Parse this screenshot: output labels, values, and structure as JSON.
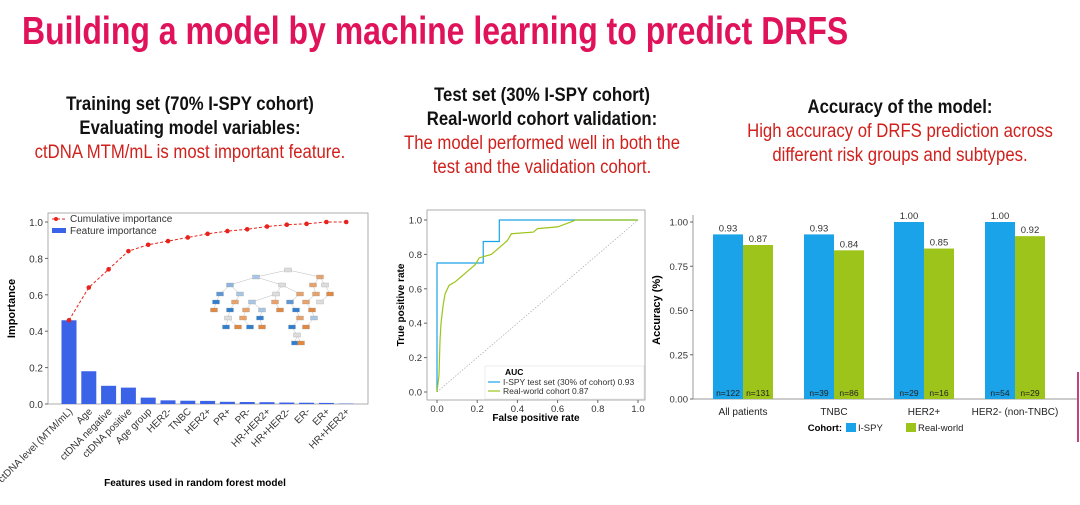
{
  "title": "Building a model by machine learning to predict DRFS",
  "columns": [
    {
      "heading_lines": [
        "Training set (70% I-SPY cohort)",
        "Evaluating model variables:"
      ],
      "highlight_lines": [
        "ctDNA MTM/mL is most important feature."
      ]
    },
    {
      "heading_lines": [
        "Test set (30% I-SPY cohort)",
        "Real-world cohort validation:"
      ],
      "highlight_lines": [
        "The model performed well in both the",
        "test and the validation cohort."
      ]
    },
    {
      "heading_lines": [
        "Accuracy of the model:"
      ],
      "highlight_lines": [
        "High accuracy of DRFS prediction across",
        "different risk groups and subtypes."
      ]
    }
  ],
  "colors": {
    "title": "#e0135a",
    "highlight": "#d0201c",
    "feature_bar": "#3a63e8",
    "cumulative": "#e8221c",
    "ispy": "#1aa3e8",
    "realworld": "#9dc41a"
  },
  "chart_data": [
    {
      "type": "bar",
      "xlabel": "Features used in random forest model",
      "ylabel": "Importance",
      "ylim": [
        0,
        1.0
      ],
      "yticks": [
        "0.0",
        "0.2",
        "0.4",
        "0.6",
        "0.8",
        "1.0"
      ],
      "categories": [
        "ctDNA level (MTM/mL)",
        "Age",
        "ctDNA negative",
        "ctDNA positive",
        "Age group",
        "HER2-",
        "TNBC",
        "HER2+",
        "PR+",
        "PR-",
        "HR-HER2+",
        "HR+HER2-",
        "ER-",
        "ER+",
        "HR+HER2+"
      ],
      "series": [
        {
          "name": "Feature importance",
          "type": "bar",
          "values": [
            0.46,
            0.18,
            0.1,
            0.09,
            0.035,
            0.02,
            0.018,
            0.017,
            0.012,
            0.011,
            0.01,
            0.008,
            0.007,
            0.006,
            0.002
          ]
        },
        {
          "name": "Cumulative importance",
          "type": "line",
          "values": [
            0.46,
            0.64,
            0.74,
            0.84,
            0.875,
            0.895,
            0.915,
            0.935,
            0.95,
            0.96,
            0.975,
            0.985,
            0.99,
            1.0,
            1.0
          ]
        }
      ],
      "legend": "top-left",
      "inset": "decision tree diagram"
    },
    {
      "type": "line",
      "xlabel": "False positive rate",
      "ylabel": "True positive rate",
      "xlim": [
        0,
        1
      ],
      "ylim": [
        0,
        1
      ],
      "xticks": [
        "0.0",
        "0.2",
        "0.4",
        "0.6",
        "0.8",
        "1.0"
      ],
      "yticks": [
        "0.0",
        "0.2",
        "0.4",
        "0.6",
        "0.8",
        "1.0"
      ],
      "legend_title": "AUC",
      "legend": "bottom-right",
      "series": [
        {
          "name": "I-SPY test set (30% of cohort) 0.93",
          "x": [
            0,
            0,
            0.23,
            0.23,
            0.31,
            0.31,
            1
          ],
          "y": [
            0,
            0.75,
            0.75,
            0.875,
            0.875,
            1,
            1
          ]
        },
        {
          "name": "Real-world cohort 0.87",
          "x": [
            0,
            0.01,
            0.015,
            0.02,
            0.03,
            0.04,
            0.06,
            0.09,
            0.12,
            0.15,
            0.19,
            0.21,
            0.27,
            0.31,
            0.35,
            0.37,
            0.48,
            0.5,
            0.6,
            0.67,
            0.69,
            1
          ],
          "y": [
            0,
            0.1,
            0.3,
            0.4,
            0.5,
            0.57,
            0.62,
            0.64,
            0.67,
            0.7,
            0.74,
            0.78,
            0.8,
            0.84,
            0.88,
            0.92,
            0.93,
            0.95,
            0.96,
            0.99,
            1,
            1
          ]
        }
      ]
    },
    {
      "type": "bar",
      "ylabel": "Accuracy (%)",
      "ylim": [
        0,
        1.0
      ],
      "yticks": [
        "0.00",
        "0.25",
        "0.50",
        "0.75",
        "1.00"
      ],
      "categories": [
        "All patients",
        "TNBC",
        "HER2+",
        "HER2- (non-TNBC)"
      ],
      "legend_title": "Cohort:",
      "legend": "bottom",
      "series": [
        {
          "name": "I-SPY",
          "values": [
            0.93,
            0.93,
            1.0,
            1.0
          ],
          "labels": [
            "0.93",
            "0.93",
            "1.00",
            "1.00"
          ],
          "n": [
            "n=122",
            "n=39",
            "n=29",
            "n=54"
          ]
        },
        {
          "name": "Real-world",
          "values": [
            0.87,
            0.84,
            0.85,
            0.92
          ],
          "labels": [
            "0.87",
            "0.84",
            "0.85",
            "0.92"
          ],
          "n": [
            "n=131",
            "n=86",
            "n=16",
            "n=29"
          ]
        }
      ]
    }
  ]
}
